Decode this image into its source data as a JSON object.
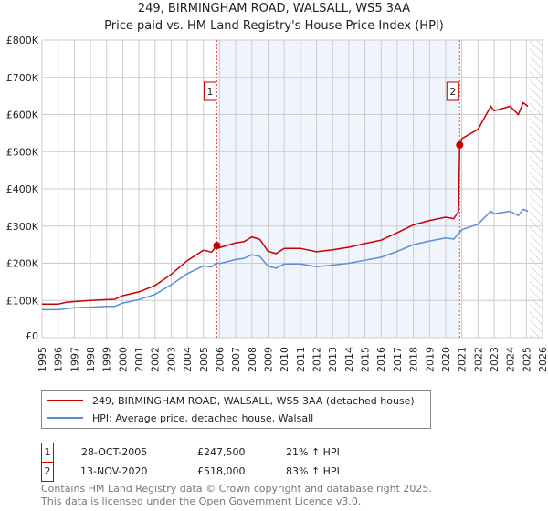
{
  "title": "249, BIRMINGHAM ROAD, WALSALL, WS5 3AA",
  "subtitle": "Price paid vs. HM Land Registry's House Price Index (HPI)",
  "chart_data": {
    "type": "line",
    "title": "249, BIRMINGHAM ROAD, WALSALL, WS5 3AA",
    "subtitle": "Price paid vs. HM Land Registry's House Price Index (HPI)",
    "xlim": [
      1995,
      2026
    ],
    "ylim": [
      0,
      800000
    ],
    "yticks": [
      0,
      100000,
      200000,
      300000,
      400000,
      500000,
      600000,
      700000,
      800000
    ],
    "ytick_labels": [
      "£0",
      "£100K",
      "£200K",
      "£300K",
      "£400K",
      "£500K",
      "£600K",
      "£700K",
      "£800K"
    ],
    "xticks": [
      "1995",
      "1996",
      "1997",
      "1998",
      "1999",
      "2000",
      "2001",
      "2002",
      "2003",
      "2004",
      "2005",
      "2006",
      "2007",
      "2008",
      "2009",
      "2010",
      "2011",
      "2012",
      "2013",
      "2014",
      "2015",
      "2016",
      "2017",
      "2018",
      "2019",
      "2020",
      "2021",
      "2022",
      "2023",
      "2024",
      "2025",
      "2026"
    ],
    "grid": true,
    "shaded_range": [
      2005.83,
      2020.87
    ],
    "hatched_from": 2025.2,
    "series": [
      {
        "name": "249, BIRMINGHAM ROAD, WALSALL, WS5 3AA (detached house)",
        "color": "#cc0000",
        "x": [
          1995,
          1996,
          1996.5,
          1997,
          1998,
          1999,
          1999.5,
          2000,
          2001,
          2002,
          2003,
          2004,
          2005,
          2005.5,
          2005.83,
          2006,
          2007,
          2007.5,
          2008,
          2008.5,
          2009,
          2009.5,
          2010,
          2011,
          2012,
          2013,
          2014,
          2015,
          2016,
          2017,
          2018,
          2019,
          2020,
          2020.5,
          2020.8,
          2020.87,
          2021,
          2022,
          2022.8,
          2023,
          2024,
          2024.5,
          2024.8,
          2025.1
        ],
        "y": [
          90000,
          90000,
          95000,
          97000,
          100000,
          102000,
          103000,
          113000,
          123000,
          140000,
          170000,
          207000,
          235000,
          230000,
          247500,
          242000,
          255000,
          258000,
          271000,
          264000,
          232000,
          226000,
          240000,
          240000,
          231000,
          236000,
          243000,
          253000,
          262000,
          282000,
          303000,
          315000,
          324000,
          320000,
          340000,
          518000,
          535000,
          560000,
          622000,
          610000,
          622000,
          600000,
          632000,
          622000
        ]
      },
      {
        "name": "HPI: Average price, detached house, Walsall",
        "color": "#5b8fd4",
        "x": [
          1995,
          1996,
          1996.5,
          1997,
          1998,
          1999,
          1999.5,
          2000,
          2001,
          2002,
          2003,
          2004,
          2005,
          2005.5,
          2005.83,
          2006,
          2007,
          2007.5,
          2008,
          2008.5,
          2009,
          2009.5,
          2010,
          2011,
          2012,
          2013,
          2014,
          2015,
          2016,
          2017,
          2018,
          2019,
          2020,
          2020.5,
          2020.87,
          2021,
          2022,
          2022.8,
          2023,
          2024,
          2024.5,
          2024.8,
          2025.1
        ],
        "y": [
          75000,
          75000,
          78000,
          80000,
          82000,
          84000,
          84000,
          93000,
          102000,
          116000,
          142000,
          172000,
          193000,
          190000,
          202000,
          199000,
          210000,
          213000,
          223000,
          218000,
          192000,
          187000,
          198000,
          198000,
          191000,
          195000,
          200000,
          208000,
          216000,
          232000,
          250000,
          260000,
          268000,
          265000,
          283000,
          290000,
          305000,
          340000,
          333000,
          340000,
          328000,
          345000,
          340000
        ]
      }
    ],
    "sales": [
      {
        "label": "1",
        "x": 2005.83,
        "y": 247500
      },
      {
        "label": "2",
        "x": 2020.87,
        "y": 518000
      }
    ]
  },
  "legend": {
    "property": "249, BIRMINGHAM ROAD, WALSALL, WS5 3AA (detached house)",
    "hpi": "HPI: Average price, detached house, Walsall"
  },
  "sales_table": [
    {
      "label": "1",
      "date": "28-OCT-2005",
      "price": "£247,500",
      "hpi": "21% ↑ HPI"
    },
    {
      "label": "2",
      "date": "13-NOV-2020",
      "price": "£518,000",
      "hpi": "83% ↑ HPI"
    }
  ],
  "footer": {
    "line1": "Contains HM Land Registry data © Crown copyright and database right 2025.",
    "line2": "This data is licensed under the Open Government Licence v3.0."
  }
}
